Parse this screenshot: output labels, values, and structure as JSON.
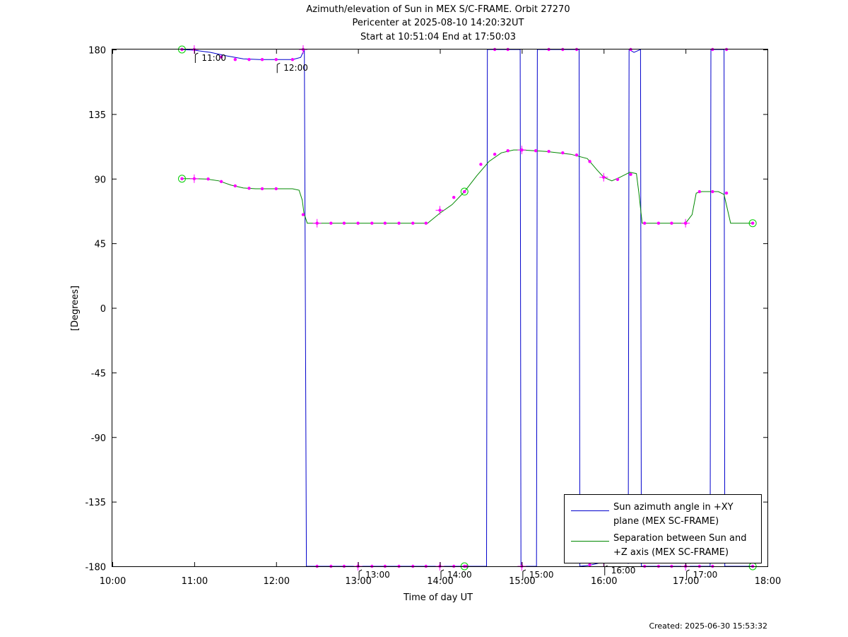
{
  "chart_data": {
    "type": "line",
    "title_lines": [
      "Azimuth/elevation of Sun in MEX S/C-FRAME.  Orbit 27270",
      "Pericenter at 2025-08-10 14:20:32UT",
      "Start at 10:51:04 End at 17:50:03"
    ],
    "xlabel": "Time of day UT",
    "ylabel": "[Degrees]",
    "xlim": [
      10.0,
      18.0
    ],
    "ylim": [
      -180,
      180
    ],
    "x_ticks": [
      {
        "value": 10,
        "label": "10:00"
      },
      {
        "value": 11,
        "label": "11:00"
      },
      {
        "value": 12,
        "label": "12:00"
      },
      {
        "value": 13,
        "label": "13:00"
      },
      {
        "value": 14,
        "label": "14:00"
      },
      {
        "value": 15,
        "label": "15:00"
      },
      {
        "value": 16,
        "label": "16:00"
      },
      {
        "value": 17,
        "label": "17:00"
      },
      {
        "value": 18,
        "label": "18:00"
      }
    ],
    "y_ticks": [
      {
        "value": 180,
        "label": "180"
      },
      {
        "value": 135,
        "label": "135"
      },
      {
        "value": 90,
        "label": "90"
      },
      {
        "value": 45,
        "label": "45"
      },
      {
        "value": 0,
        "label": "0"
      },
      {
        "value": -45,
        "label": "-45"
      },
      {
        "value": -90,
        "label": "-90"
      },
      {
        "value": -135,
        "label": "-135"
      },
      {
        "value": -180,
        "label": "-180"
      }
    ],
    "grid": false,
    "legend_position": "bottom-right",
    "series": [
      {
        "name_lines": [
          "Sun azimuth angle in +XY",
          "plane (MEX SC-FRAME)"
        ],
        "color": "#0000cc",
        "points": [
          [
            10.85,
            180
          ],
          [
            11.0,
            179.5
          ],
          [
            11.2,
            178
          ],
          [
            11.4,
            175.5
          ],
          [
            11.6,
            173.5
          ],
          [
            11.8,
            173.0
          ],
          [
            12.0,
            173.0
          ],
          [
            12.2,
            173.0
          ],
          [
            12.3,
            174.5
          ],
          [
            12.345,
            180
          ],
          [
            12.37,
            -180
          ],
          [
            12.5,
            -180
          ],
          [
            13.0,
            -180
          ],
          [
            13.5,
            -180
          ],
          [
            14.0,
            -180
          ],
          [
            14.5,
            -180
          ],
          [
            14.57,
            -180
          ],
          [
            14.58,
            180
          ],
          [
            14.8,
            180
          ],
          [
            14.98,
            180
          ],
          [
            14.99,
            -180
          ],
          [
            15.18,
            -180
          ],
          [
            15.19,
            180
          ],
          [
            15.4,
            180
          ],
          [
            15.7,
            180
          ],
          [
            15.71,
            -180
          ],
          [
            15.85,
            -179
          ],
          [
            16.0,
            -177
          ],
          [
            16.2,
            -176
          ],
          [
            16.3,
            -178
          ],
          [
            16.31,
            180
          ],
          [
            16.37,
            178
          ],
          [
            16.45,
            180
          ],
          [
            16.46,
            -180
          ],
          [
            16.7,
            -180
          ],
          [
            17.0,
            -180
          ],
          [
            17.3,
            -180
          ],
          [
            17.31,
            180
          ],
          [
            17.47,
            180
          ],
          [
            17.48,
            -180
          ],
          [
            17.81,
            -180
          ]
        ]
      },
      {
        "name_lines": [
          "Separation between Sun and",
          "+Z axis (MEX SC-FRAME)"
        ],
        "color": "#008800",
        "points": [
          [
            10.85,
            90
          ],
          [
            11.0,
            90
          ],
          [
            11.15,
            89.8
          ],
          [
            11.3,
            88.5
          ],
          [
            11.45,
            85.5
          ],
          [
            11.6,
            83.5
          ],
          [
            11.75,
            83
          ],
          [
            12.0,
            83
          ],
          [
            12.2,
            83
          ],
          [
            12.28,
            82
          ],
          [
            12.32,
            75
          ],
          [
            12.34,
            66
          ],
          [
            12.38,
            59
          ],
          [
            12.5,
            59
          ],
          [
            13.0,
            59
          ],
          [
            13.5,
            59
          ],
          [
            13.85,
            59
          ],
          [
            14.0,
            66
          ],
          [
            14.15,
            72
          ],
          [
            14.3,
            81
          ],
          [
            14.45,
            92
          ],
          [
            14.6,
            102
          ],
          [
            14.75,
            108
          ],
          [
            14.9,
            110
          ],
          [
            15.0,
            110
          ],
          [
            15.3,
            109
          ],
          [
            15.6,
            107
          ],
          [
            15.8,
            104
          ],
          [
            15.92,
            96
          ],
          [
            16.0,
            91
          ],
          [
            16.1,
            88.5
          ],
          [
            16.2,
            91
          ],
          [
            16.32,
            94.5
          ],
          [
            16.4,
            93.5
          ],
          [
            16.43,
            80
          ],
          [
            16.47,
            59
          ],
          [
            16.6,
            59
          ],
          [
            16.8,
            59
          ],
          [
            17.0,
            59
          ],
          [
            17.08,
            65
          ],
          [
            17.13,
            80
          ],
          [
            17.2,
            81
          ],
          [
            17.4,
            81
          ],
          [
            17.47,
            79
          ],
          [
            17.55,
            59
          ],
          [
            17.82,
            59
          ]
        ]
      }
    ],
    "markers": {
      "color": "#ff00ff",
      "dots": [
        [
          11.33,
          174.8
        ],
        [
          11.5,
          173
        ],
        [
          11.67,
          173
        ],
        [
          11.83,
          173
        ],
        [
          12.0,
          173
        ],
        [
          12.2,
          173
        ],
        [
          11.17,
          89.8
        ],
        [
          11.33,
          88
        ],
        [
          11.5,
          85
        ],
        [
          11.67,
          83.3
        ],
        [
          11.83,
          83
        ],
        [
          12.0,
          83
        ],
        [
          12.33,
          65
        ],
        [
          12.67,
          59
        ],
        [
          12.83,
          59
        ],
        [
          13.0,
          59
        ],
        [
          13.17,
          59
        ],
        [
          13.33,
          59
        ],
        [
          13.5,
          59
        ],
        [
          13.67,
          59
        ],
        [
          13.83,
          59
        ],
        [
          14.17,
          77
        ],
        [
          14.5,
          100
        ],
        [
          14.67,
          107
        ],
        [
          14.83,
          109.5
        ],
        [
          15.0,
          110
        ],
        [
          15.17,
          109.5
        ],
        [
          15.33,
          109
        ],
        [
          15.5,
          108
        ],
        [
          15.67,
          106.5
        ],
        [
          15.83,
          102
        ],
        [
          16.17,
          89.5
        ],
        [
          16.33,
          93
        ],
        [
          16.5,
          59
        ],
        [
          16.67,
          59
        ],
        [
          16.83,
          59
        ],
        [
          17.0,
          59
        ],
        [
          17.17,
          81
        ],
        [
          17.33,
          81
        ],
        [
          17.5,
          80
        ],
        [
          12.5,
          -180
        ],
        [
          12.67,
          -180
        ],
        [
          12.83,
          -180
        ],
        [
          13.0,
          -180
        ],
        [
          13.17,
          -180
        ],
        [
          13.33,
          -180
        ],
        [
          13.5,
          -180
        ],
        [
          13.67,
          -180
        ],
        [
          13.83,
          -180
        ],
        [
          14.17,
          -180
        ],
        [
          14.33,
          -180
        ],
        [
          14.67,
          180
        ],
        [
          14.83,
          180
        ],
        [
          15.33,
          180
        ],
        [
          15.5,
          180
        ],
        [
          15.67,
          180
        ],
        [
          16.33,
          180
        ],
        [
          17.33,
          180
        ],
        [
          17.5,
          180
        ],
        [
          15.83,
          -179
        ],
        [
          16.5,
          -180
        ],
        [
          16.67,
          -180
        ],
        [
          16.83,
          -180
        ],
        [
          17.0,
          -180
        ],
        [
          17.17,
          -180
        ],
        [
          17.33,
          -180
        ]
      ],
      "crosses": [
        [
          11.0,
          180
        ],
        [
          11.0,
          90
        ],
        [
          12.33,
          180
        ],
        [
          12.5,
          59
        ],
        [
          13.0,
          -180
        ],
        [
          14.0,
          68
        ],
        [
          14.0,
          -180
        ],
        [
          15.0,
          110
        ],
        [
          15.0,
          -180
        ],
        [
          16.0,
          91
        ],
        [
          16.0,
          -177
        ],
        [
          17.0,
          59
        ],
        [
          17.0,
          -180
        ]
      ],
      "circles_color": "#00cc00",
      "circles": [
        [
          10.85,
          180
        ],
        [
          10.85,
          90
        ],
        [
          14.3,
          81
        ],
        [
          14.3,
          -180
        ],
        [
          17.82,
          59
        ],
        [
          17.82,
          -180
        ]
      ]
    },
    "time_annotations": [
      {
        "x": 11.0,
        "y": 180,
        "label": "11:00"
      },
      {
        "x": 12.0,
        "y": 173,
        "label": "12:00"
      },
      {
        "x": 13.0,
        "y": -180,
        "label": "13:00"
      },
      {
        "x": 14.0,
        "y": -180,
        "label": "14:00"
      },
      {
        "x": 15.0,
        "y": -180,
        "label": "15:00"
      },
      {
        "x": 16.0,
        "y": -177,
        "label": "16:00"
      },
      {
        "x": 17.0,
        "y": -180,
        "label": "17:00"
      }
    ]
  },
  "footer": {
    "created": "Created: 2025-06-30 15:53:32"
  }
}
